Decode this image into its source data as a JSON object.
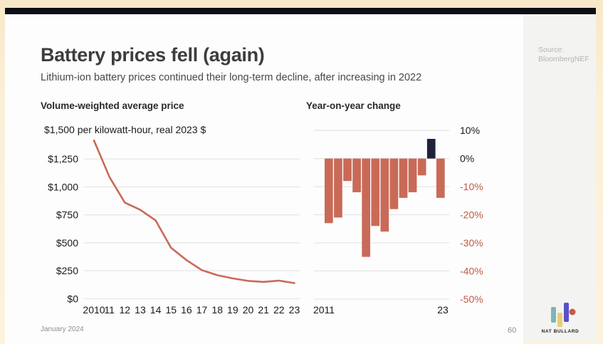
{
  "page": {
    "title": "Battery prices fell (again)",
    "subtitle": "Lithium-ion battery prices continued their long-term decline, after increasing in 2022",
    "date": "January 2024",
    "page_number": "60",
    "source_label": "Source:",
    "source_value": "BloombergNEF",
    "brand": "NAT BULLARD"
  },
  "colors": {
    "accent_salmon": "#c96a57",
    "negative_label": "#c05a47",
    "positive_bar_navy": "#232039",
    "gridline": "#e4e4e4",
    "tick_dark": "#1a1a1c",
    "logo_teal": "#7fb3ba",
    "logo_yellow": "#e9cd70",
    "logo_indigo": "#5a50c8",
    "logo_red": "#c75b49"
  },
  "chart_data": [
    {
      "type": "line",
      "title": "Volume-weighted average price",
      "unit_label": "$1,500 per kilowatt-hour, real 2023 $",
      "x": [
        2010,
        2011,
        2012,
        2013,
        2014,
        2015,
        2016,
        2017,
        2018,
        2019,
        2020,
        2021,
        2022,
        2023
      ],
      "values": [
        1415,
        1090,
        860,
        795,
        700,
        455,
        345,
        255,
        210,
        181,
        159,
        150,
        161,
        139
      ],
      "ylim": [
        0,
        1500
      ],
      "yticks": [
        {
          "v": 1250,
          "label": "$1,250"
        },
        {
          "v": 1000,
          "label": "$1,000"
        },
        {
          "v": 750,
          "label": "$750"
        },
        {
          "v": 500,
          "label": "$500"
        },
        {
          "v": 250,
          "label": "$250"
        },
        {
          "v": 0,
          "label": "$0"
        }
      ],
      "xtick_labels": [
        "2010",
        "11",
        "12",
        "13",
        "14",
        "15",
        "16",
        "17",
        "18",
        "19",
        "20",
        "21",
        "22",
        "23"
      ],
      "grid": true,
      "line_color": "#c96a57"
    },
    {
      "type": "bar",
      "title": "Year-on-year change",
      "categories": [
        2011,
        2012,
        2013,
        2014,
        2015,
        2016,
        2017,
        2018,
        2019,
        2020,
        2021,
        2022,
        2023
      ],
      "values": [
        -23,
        -21,
        -8,
        -12,
        -35,
        -24,
        -26,
        -18,
        -14,
        -12,
        -6,
        7,
        -14
      ],
      "unit": "%",
      "ylim": [
        -50,
        10
      ],
      "yticks": [
        {
          "v": 10,
          "label": "10%",
          "tone": "dark"
        },
        {
          "v": 0,
          "label": "0%",
          "tone": "dark"
        },
        {
          "v": -10,
          "label": "-10%",
          "tone": "accent"
        },
        {
          "v": -20,
          "label": "-20%",
          "tone": "accent"
        },
        {
          "v": -30,
          "label": "-30%",
          "tone": "accent"
        },
        {
          "v": -40,
          "label": "-40%",
          "tone": "accent"
        },
        {
          "v": -50,
          "label": "-50%",
          "tone": "accent"
        }
      ],
      "xtick_first": "2011",
      "xtick_last": "23",
      "grid": true,
      "legend": "none",
      "bar_color_negative": "#c96a57",
      "bar_color_positive": "#232039"
    }
  ]
}
